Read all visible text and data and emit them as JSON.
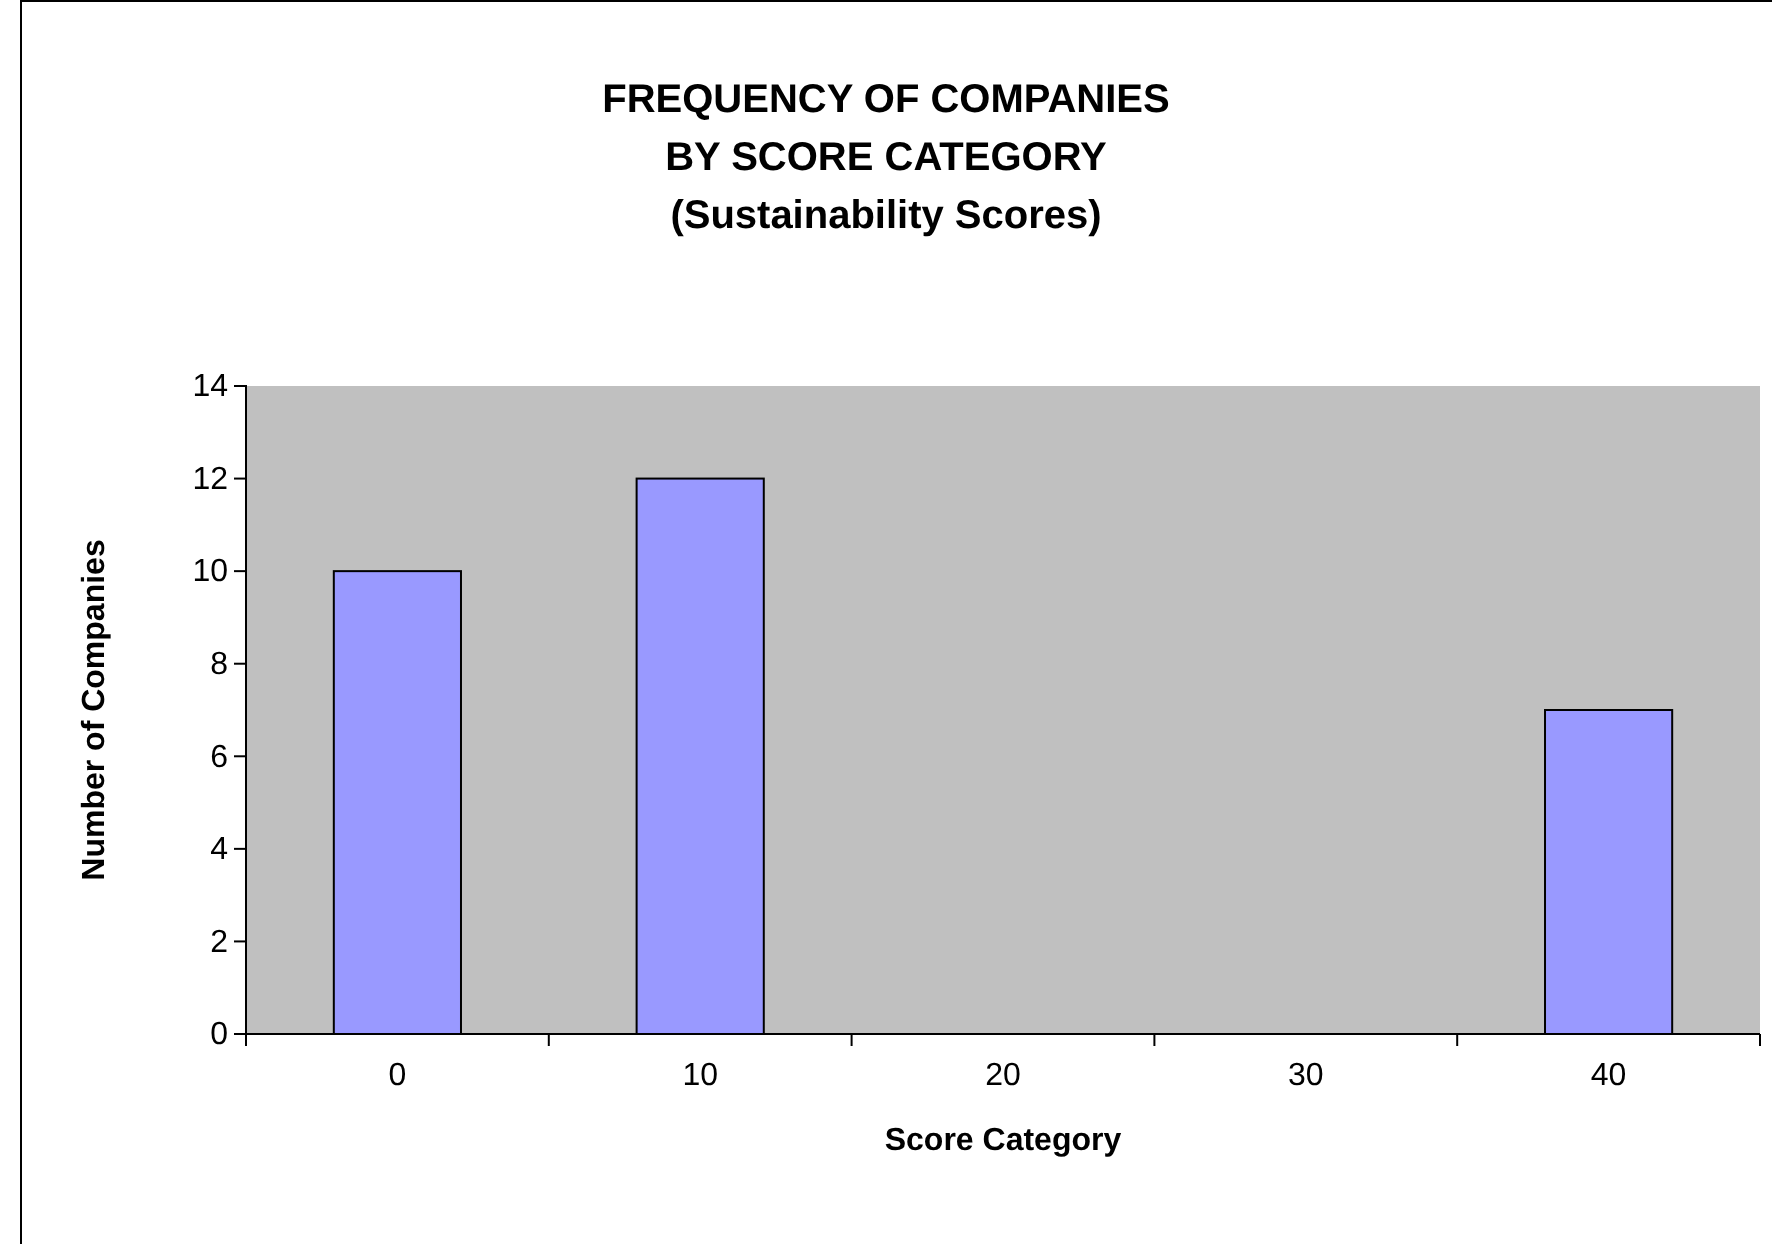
{
  "chart_data": {
    "type": "bar",
    "title": "FREQUENCY OF COMPANIES\nBY SCORE CATEGORY",
    "subtitle": "(Sustainability Scores)",
    "xlabel": "Score Category",
    "ylabel": "Number of Companies",
    "categories": [
      "0",
      "10",
      "20",
      "30",
      "40"
    ],
    "values": [
      10,
      12,
      0,
      0,
      7
    ],
    "color": "#9999ff",
    "ylim": [
      0,
      14
    ],
    "yticks": [
      0,
      2,
      4,
      6,
      8,
      10,
      12,
      14
    ],
    "grid": false
  }
}
